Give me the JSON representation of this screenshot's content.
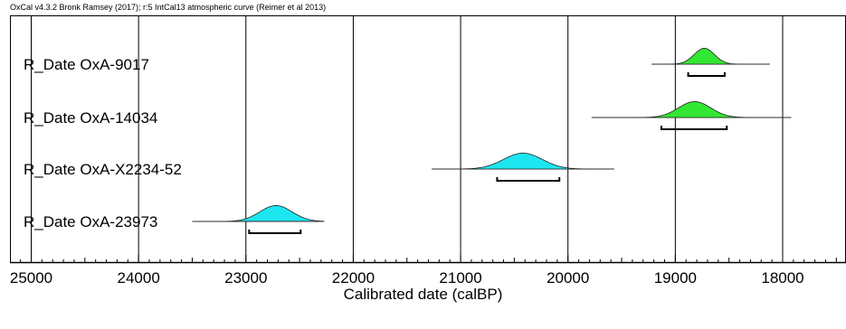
{
  "header": "OxCal v4.3.2 Bronk Ramsey (2017); r:5 IntCal13 atmospheric curve (Reimer et al 2013)",
  "colors": {
    "axis": "#000000",
    "green": "#33e633",
    "cyan": "#1ee6f0",
    "prior_line": "#555555"
  },
  "chart_data": {
    "type": "area",
    "title": "",
    "xlabel": "Calibrated date (calBP)",
    "ylabel": "",
    "xlim": [
      25200,
      17500
    ],
    "x_reversed": true,
    "grid": "vertical lines at ticks",
    "ticks": [
      25000,
      24000,
      23000,
      22000,
      21000,
      20000,
      19000,
      18000
    ],
    "tick_labels": [
      "25000",
      "24000",
      "23000",
      "22000",
      "21000",
      "20000",
      "19000",
      "18000"
    ],
    "series": [
      {
        "name": "R_Date OxA-9017",
        "color": "green",
        "peak": 18730,
        "sigma": 95,
        "curve_range": [
          19220,
          18120
        ],
        "interval": [
          18880,
          18540
        ],
        "height": 0.55
      },
      {
        "name": "R_Date OxA-14034",
        "color": "green",
        "peak": 18820,
        "sigma": 150,
        "curve_range": [
          19780,
          17920
        ],
        "interval": [
          19130,
          18520
        ],
        "height": 0.55
      },
      {
        "name": "R_Date OxA-X2234-52",
        "color": "cyan",
        "peak": 20420,
        "sigma": 180,
        "curve_range": [
          21270,
          19570
        ],
        "interval": [
          20660,
          20080
        ],
        "height": 0.55
      },
      {
        "name": "R_Date OxA-23973",
        "color": "cyan",
        "peak": 22720,
        "sigma": 150,
        "curve_range": [
          23500,
          22270
        ],
        "interval": [
          22970,
          22490
        ],
        "height": 0.55
      }
    ]
  }
}
